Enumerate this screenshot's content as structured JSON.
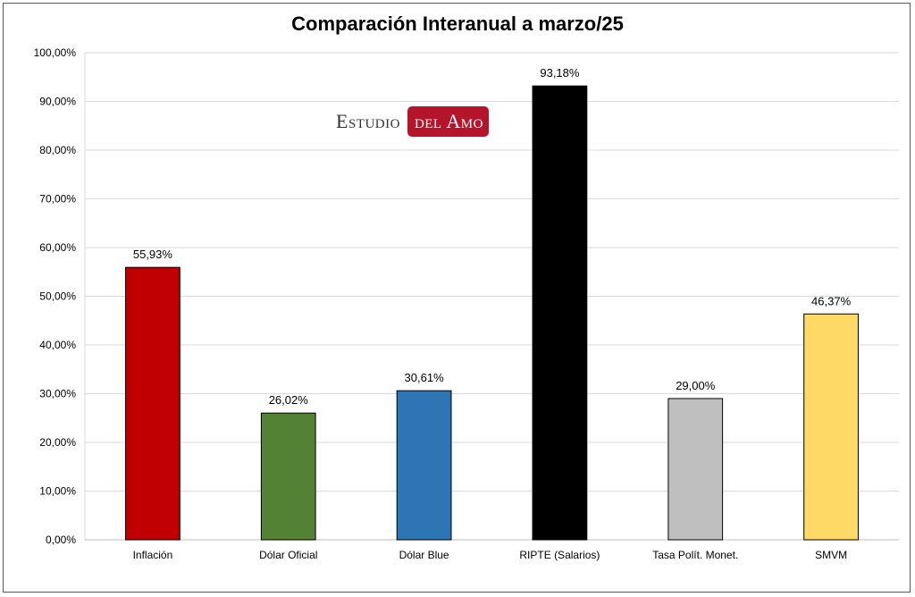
{
  "chart_data": {
    "type": "bar",
    "title": "Comparación Interanual a marzo/25",
    "xlabel": "",
    "ylabel": "",
    "categories": [
      "Inflación",
      "Dólar Oficial",
      "Dólar Blue",
      "RIPTE (Salarios)",
      "Tasa Polít. Monet.",
      "SMVM"
    ],
    "values": [
      55.93,
      26.02,
      30.61,
      93.18,
      29.0,
      46.37
    ],
    "data_labels": [
      "55,93%",
      "26,02%",
      "30,61%",
      "93,18%",
      "29,00%",
      "46,37%"
    ],
    "colors": [
      "#c00000",
      "#548235",
      "#2e75b6",
      "#000000",
      "#bfbfbf",
      "#ffd966"
    ],
    "ylim": [
      0,
      100
    ],
    "yticks": [
      0,
      10,
      20,
      30,
      40,
      50,
      60,
      70,
      80,
      90,
      100
    ],
    "ytick_labels": [
      "0,00%",
      "10,00%",
      "20,00%",
      "30,00%",
      "40,00%",
      "50,00%",
      "60,00%",
      "70,00%",
      "80,00%",
      "90,00%",
      "100,00%"
    ],
    "grid": true,
    "legend": "none"
  },
  "watermark": {
    "part1": "Estudio",
    "part2": "del Amo",
    "accent_color": "#b5152b"
  }
}
